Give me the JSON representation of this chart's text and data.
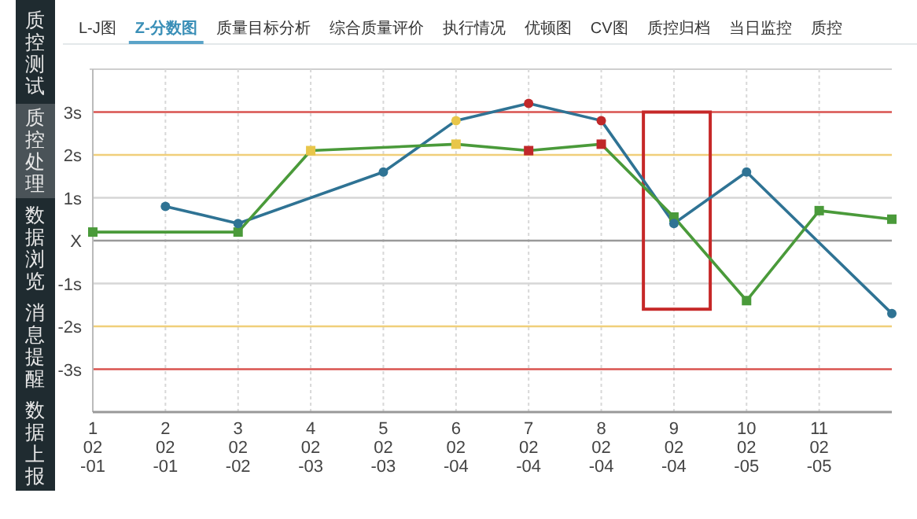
{
  "chart_data": {
    "type": "line",
    "title": "Z-分数图",
    "annotations": [
      "质控测试",
      "质控处理",
      "数据浏览",
      "消息提醒",
      "数据上报",
      "L-J图",
      "质量目标分析",
      "综合质量评价",
      "执行情况",
      "优顿图",
      "CV图",
      "质控归档",
      "当日监控",
      "质控"
    ],
    "categories": [
      "1\n02\n-01",
      "2\n02\n-01",
      "3\n02\n-02",
      "4\n02\n-03",
      "5\n02\n-03",
      "6\n02\n-04",
      "7\n02\n-04",
      "8\n02\n-04",
      "9\n02\n-04",
      "10\n02\n-05",
      "11\n02\n-05",
      null
    ],
    "ylim": [
      -4,
      4
    ],
    "yticks": [
      {
        "value": 3,
        "label": "3s"
      },
      {
        "value": 2,
        "label": "2s"
      },
      {
        "value": 1,
        "label": "1s"
      },
      {
        "value": 0,
        "label": "X"
      },
      {
        "value": -1,
        "label": "-1s"
      },
      {
        "value": -2,
        "label": "-2s"
      },
      {
        "value": -3,
        "label": "-3s"
      }
    ],
    "grid": "x",
    "ref_lines": [
      {
        "axis": "y",
        "value": 3,
        "color": "#d9534f"
      },
      {
        "axis": "y",
        "value": 2,
        "color": "#f0cf7a"
      },
      {
        "axis": "y",
        "value": 1,
        "color": "#d6d6d6"
      },
      {
        "axis": "y",
        "value": 0,
        "color": "#9a9a9a"
      },
      {
        "axis": "y",
        "value": -1,
        "color": "#d6d6d6"
      },
      {
        "axis": "y",
        "value": -2,
        "color": "#f0cf7a"
      },
      {
        "axis": "y",
        "value": -3,
        "color": "#d9534f"
      }
    ],
    "series": [
      {
        "color": "#2f7394",
        "marker": "circle",
        "values": [
          null,
          0.8,
          0.4,
          null,
          1.6,
          2.8,
          3.2,
          2.8,
          0.4,
          1.6,
          null,
          -1.7
        ],
        "colors": [
          null,
          "#2f7394",
          "#2f7394",
          null,
          "#2f7394",
          "#e8c64a",
          "#c0282a",
          "#c0282a",
          "#2f7394",
          "#2f7394",
          null,
          "#2f7394"
        ]
      },
      {
        "color": "#4a9a3a",
        "marker": "square",
        "values": [
          0.2,
          null,
          0.2,
          2.1,
          null,
          2.25,
          2.1,
          2.25,
          0.55,
          -1.4,
          0.7,
          0.5
        ],
        "colors": [
          "#4a9a3a",
          null,
          "#4a9a3a",
          "#e8c64a",
          null,
          "#e8c64a",
          "#c0282a",
          "#c0282a",
          "#4a9a3a",
          "#4a9a3a",
          "#4a9a3a",
          "#4a9a3a"
        ]
      }
    ]
  }
}
